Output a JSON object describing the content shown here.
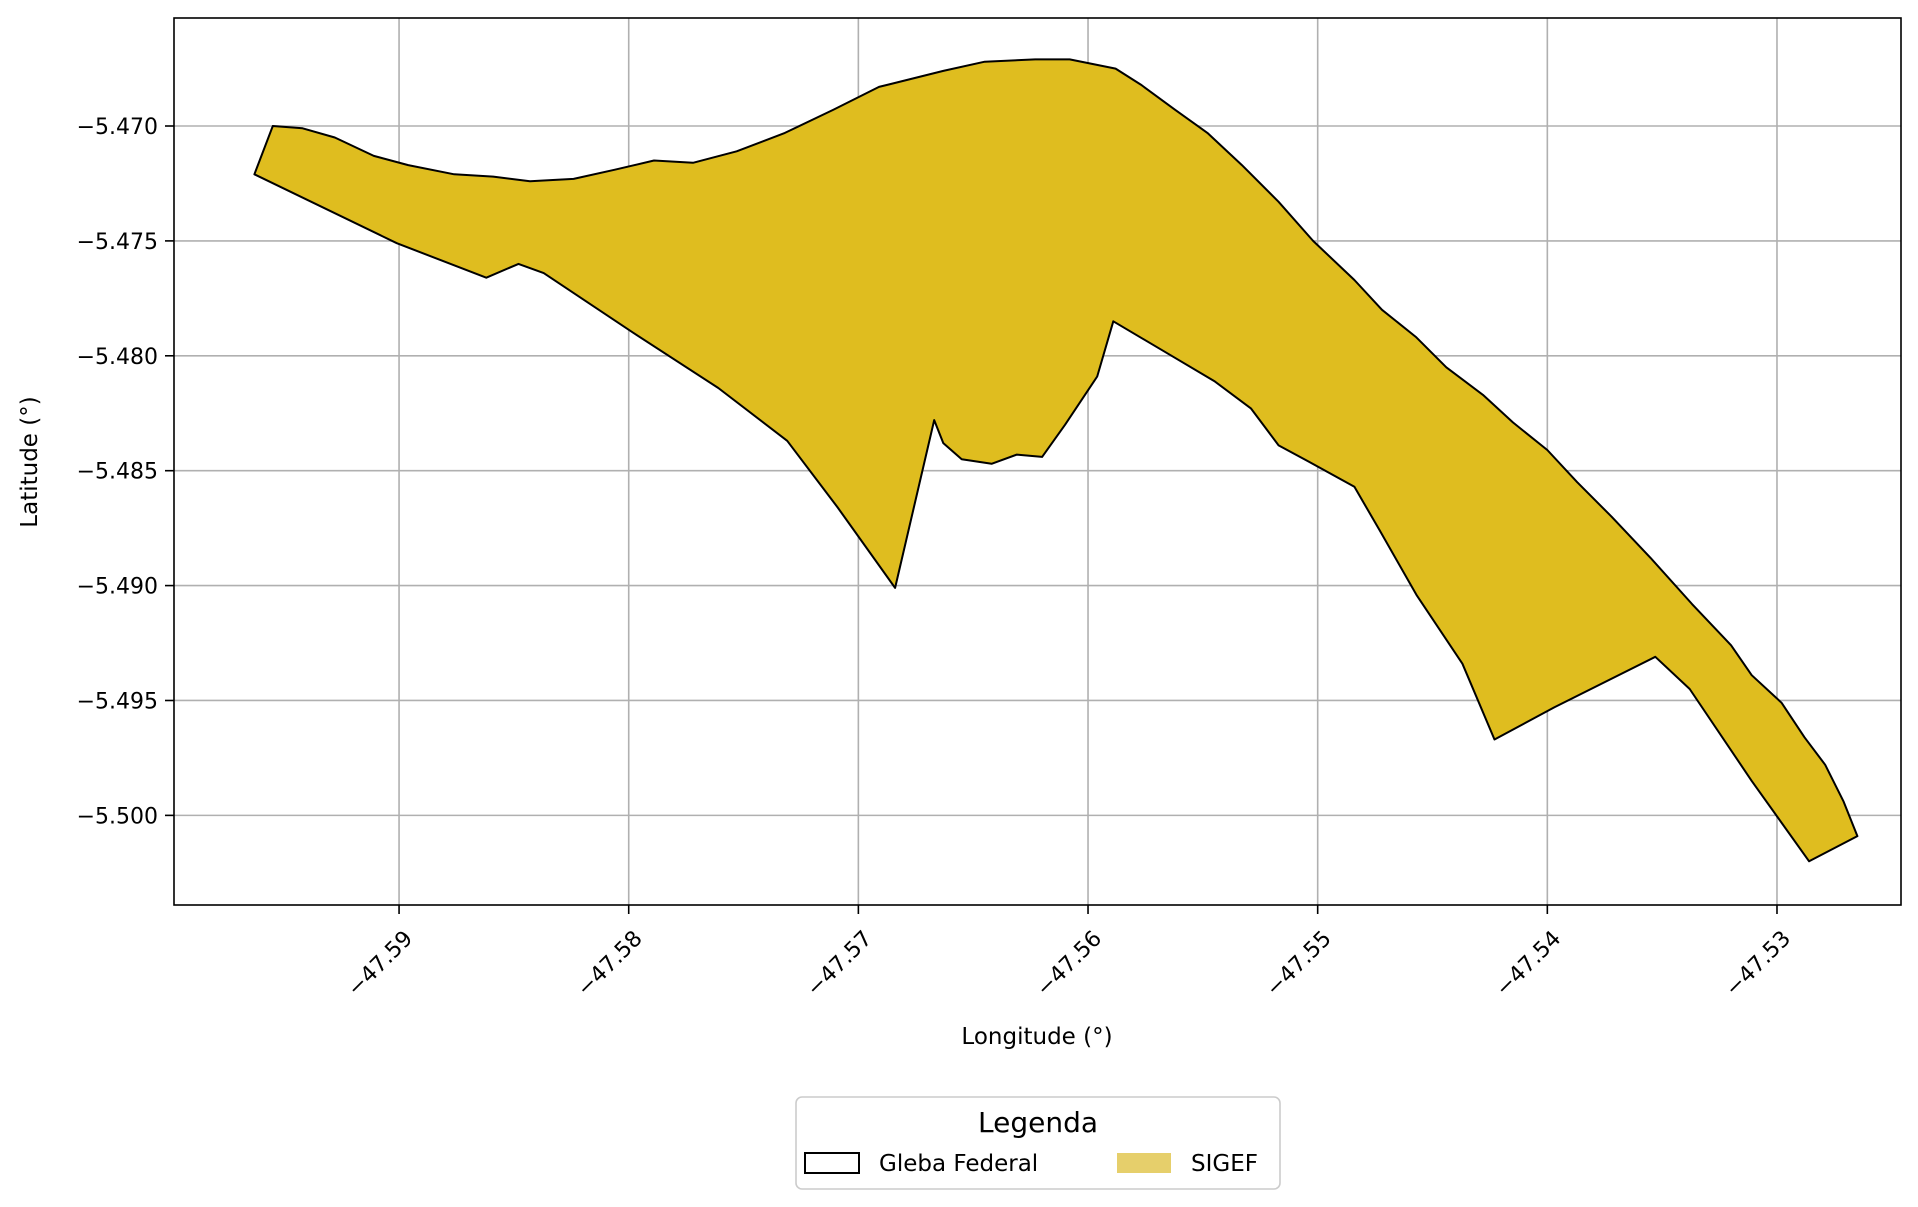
{
  "chart_data": {
    "type": "map",
    "xlabel": "Longitude (°)",
    "ylabel": "Latitude (°)",
    "xlim": [
      -47.5998,
      -47.5246
    ],
    "ylim": [
      -5.5039,
      -5.4653
    ],
    "x_ticks": [
      {
        "value": -47.59,
        "label": "−47.59"
      },
      {
        "value": -47.58,
        "label": "−47.58"
      },
      {
        "value": -47.57,
        "label": "−47.57"
      },
      {
        "value": -47.56,
        "label": "−47.56"
      },
      {
        "value": -47.55,
        "label": "−47.55"
      },
      {
        "value": -47.54,
        "label": "−47.54"
      },
      {
        "value": -47.53,
        "label": "−47.53"
      }
    ],
    "y_ticks": [
      {
        "value": -5.47,
        "label": "−5.470"
      },
      {
        "value": -5.475,
        "label": "−5.475"
      },
      {
        "value": -5.48,
        "label": "−5.480"
      },
      {
        "value": -5.485,
        "label": "−5.485"
      },
      {
        "value": -5.49,
        "label": "−5.490"
      },
      {
        "value": -5.495,
        "label": "−5.495"
      },
      {
        "value": -5.5,
        "label": "−5.500"
      }
    ],
    "grid": true,
    "legend": {
      "title": "Legenda",
      "placement": "bottom-center",
      "entries": [
        {
          "label": "Gleba Federal",
          "style": "outline",
          "edge_color": "#000000",
          "fill": "none"
        },
        {
          "label": "SIGEF",
          "style": "filled",
          "fill": "#e6cf6b"
        }
      ]
    },
    "polygon": {
      "fill": "#dfbd1f",
      "edge_color": "#000000",
      "coordinates": [
        [
          -47.5963,
          -5.4721
        ],
        [
          -47.5955,
          -5.47
        ],
        [
          -47.5942,
          -5.4701
        ],
        [
          -47.5928,
          -5.4705
        ],
        [
          -47.5911,
          -5.4713
        ],
        [
          -47.5896,
          -5.4717
        ],
        [
          -47.5876,
          -5.4721
        ],
        [
          -47.5859,
          -5.4722
        ],
        [
          -47.5843,
          -5.4724
        ],
        [
          -47.5824,
          -5.4723
        ],
        [
          -47.5806,
          -5.4719
        ],
        [
          -47.5789,
          -5.4715
        ],
        [
          -47.5772,
          -5.4716
        ],
        [
          -47.5753,
          -5.4711
        ],
        [
          -47.5732,
          -5.4703
        ],
        [
          -47.5711,
          -5.4693
        ],
        [
          -47.5691,
          -5.4683
        ],
        [
          -47.5663,
          -5.4676
        ],
        [
          -47.5645,
          -5.4672
        ],
        [
          -47.5623,
          -5.4671
        ],
        [
          -47.5608,
          -5.4671
        ],
        [
          -47.5588,
          -5.4675
        ],
        [
          -47.5577,
          -5.4682
        ],
        [
          -47.5562,
          -5.4693
        ],
        [
          -47.5548,
          -5.4703
        ],
        [
          -47.5533,
          -5.4717
        ],
        [
          -47.5517,
          -5.4733
        ],
        [
          -47.5502,
          -5.475
        ],
        [
          -47.5484,
          -5.4767
        ],
        [
          -47.5472,
          -5.478
        ],
        [
          -47.5457,
          -5.4792
        ],
        [
          -47.5444,
          -5.4805
        ],
        [
          -47.5428,
          -5.4817
        ],
        [
          -47.5415,
          -5.4829
        ],
        [
          -47.54,
          -5.4841
        ],
        [
          -47.5387,
          -5.4855
        ],
        [
          -47.5372,
          -5.487
        ],
        [
          -47.5355,
          -5.4888
        ],
        [
          -47.5337,
          -5.4908
        ],
        [
          -47.532,
          -5.4926
        ],
        [
          -47.5311,
          -5.4939
        ],
        [
          -47.5298,
          -5.4951
        ],
        [
          -47.5288,
          -5.4966
        ],
        [
          -47.5279,
          -5.4978
        ],
        [
          -47.5271,
          -5.4994
        ],
        [
          -47.5265,
          -5.5009
        ],
        [
          -47.5286,
          -5.502
        ],
        [
          -47.5311,
          -5.4985
        ],
        [
          -47.5338,
          -5.4945
        ],
        [
          -47.5353,
          -5.4931
        ],
        [
          -47.5397,
          -5.4953
        ],
        [
          -47.5423,
          -5.4967
        ],
        [
          -47.5437,
          -5.4934
        ],
        [
          -47.5457,
          -5.4904
        ],
        [
          -47.5473,
          -5.4876
        ],
        [
          -47.5484,
          -5.4857
        ],
        [
          -47.5504,
          -5.4846
        ],
        [
          -47.5517,
          -5.4839
        ],
        [
          -47.5529,
          -5.4823
        ],
        [
          -47.5545,
          -5.4811
        ],
        [
          -47.5567,
          -5.4798
        ],
        [
          -47.5589,
          -5.4785
        ],
        [
          -47.5596,
          -5.4809
        ],
        [
          -47.561,
          -5.483
        ],
        [
          -47.562,
          -5.4844
        ],
        [
          -47.5631,
          -5.4843
        ],
        [
          -47.5642,
          -5.4847
        ],
        [
          -47.5655,
          -5.4845
        ],
        [
          -47.5663,
          -5.4838
        ],
        [
          -47.5667,
          -5.4828
        ],
        [
          -47.5684,
          -5.4901
        ],
        [
          -47.5709,
          -5.4866
        ],
        [
          -47.5731,
          -5.4837
        ],
        [
          -47.5761,
          -5.4814
        ],
        [
          -47.5798,
          -5.479
        ],
        [
          -47.5837,
          -5.4764
        ],
        [
          -47.5848,
          -5.476
        ],
        [
          -47.5862,
          -5.4766
        ],
        [
          -47.5901,
          -5.4751
        ],
        [
          -47.5963,
          -5.4721
        ]
      ]
    }
  }
}
